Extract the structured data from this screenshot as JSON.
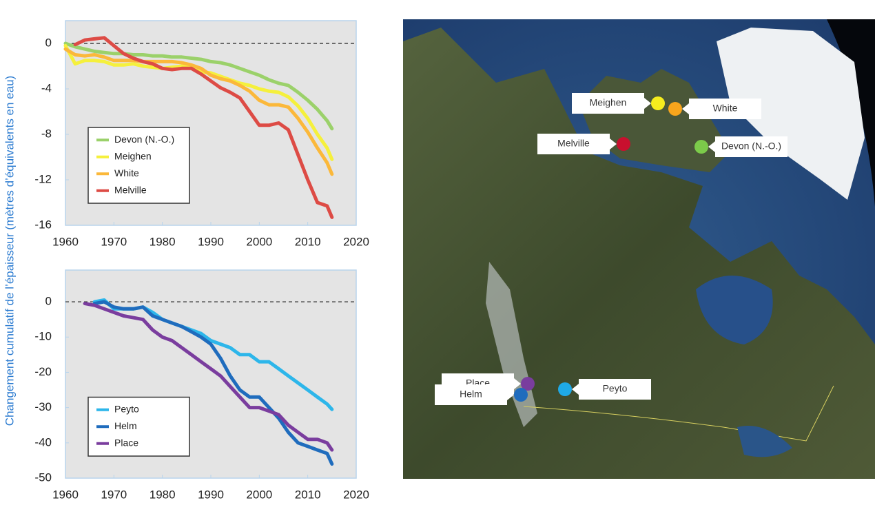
{
  "shared_ylabel": "Changement cumulatif de l’épaisseur (mètres d’équivalents en eau)",
  "chart_data": [
    {
      "type": "line",
      "x": [
        1960,
        1962,
        1964,
        1966,
        1968,
        1970,
        1972,
        1974,
        1976,
        1978,
        1980,
        1982,
        1984,
        1986,
        1988,
        1990,
        1992,
        1994,
        1996,
        1998,
        2000,
        2002,
        2004,
        2006,
        2008,
        2010,
        2012,
        2014,
        2015
      ],
      "xlim": [
        1960,
        2020
      ],
      "xticks": [
        1960,
        1970,
        1980,
        1990,
        2000,
        2010,
        2020
      ],
      "ylim": [
        -16,
        2
      ],
      "yticks": [
        0,
        -4,
        -8,
        -12,
        -16
      ],
      "reference_line": 0,
      "grid": false,
      "legend": "lower left",
      "series": [
        {
          "name": "Devon (N.-O.)",
          "color": "#9bd16a",
          "values": [
            0,
            -0.3,
            -0.5,
            -0.7,
            -0.8,
            -0.9,
            -0.9,
            -1.0,
            -1.0,
            -1.1,
            -1.1,
            -1.2,
            -1.2,
            -1.3,
            -1.4,
            -1.6,
            -1.7,
            -1.9,
            -2.2,
            -2.5,
            -2.8,
            -3.2,
            -3.5,
            -3.7,
            -4.3,
            -5.0,
            -5.8,
            -6.8,
            -7.5
          ]
        },
        {
          "name": "Meighen",
          "color": "#f5f03c",
          "values": [
            -0.2,
            -1.8,
            -1.5,
            -1.5,
            -1.6,
            -1.9,
            -1.9,
            -1.8,
            -2.0,
            -2.1,
            -2.2,
            -2.1,
            -2.0,
            -2.1,
            -2.5,
            -2.6,
            -2.9,
            -3.2,
            -3.5,
            -3.7,
            -4.0,
            -4.2,
            -4.3,
            -4.7,
            -5.5,
            -6.6,
            -8.0,
            -9.2,
            -10.2
          ]
        },
        {
          "name": "White",
          "color": "#fbb83a",
          "values": [
            -0.5,
            -1.0,
            -1.1,
            -1.0,
            -1.2,
            -1.5,
            -1.5,
            -1.5,
            -1.6,
            -1.6,
            -1.6,
            -1.6,
            -1.7,
            -1.9,
            -2.2,
            -2.8,
            -3.1,
            -3.3,
            -3.7,
            -4.2,
            -5.0,
            -5.4,
            -5.4,
            -5.6,
            -6.6,
            -7.8,
            -9.2,
            -10.5,
            -11.5
          ]
        },
        {
          "name": "Melville",
          "color": "#dd4b45",
          "values": [
            null,
            -0.1,
            0.3,
            0.4,
            0.5,
            -0.2,
            -0.9,
            -1.3,
            -1.6,
            -1.8,
            -2.2,
            -2.3,
            -2.2,
            -2.2,
            -2.7,
            -3.3,
            -3.9,
            -4.3,
            -4.8,
            -6.0,
            -7.2,
            -7.2,
            -7.0,
            -7.6,
            -9.8,
            -12.0,
            -14.0,
            -14.3,
            -15.3
          ]
        }
      ]
    },
    {
      "type": "line",
      "x": [
        1964,
        1966,
        1968,
        1970,
        1972,
        1974,
        1976,
        1978,
        1980,
        1982,
        1984,
        1986,
        1988,
        1990,
        1992,
        1994,
        1996,
        1998,
        2000,
        2002,
        2004,
        2006,
        2008,
        2010,
        2012,
        2014,
        2015
      ],
      "xlim": [
        1960,
        2020
      ],
      "xticks": [
        1960,
        1970,
        1980,
        1990,
        2000,
        2010,
        2020
      ],
      "ylim": [
        -50,
        9
      ],
      "yticks": [
        0,
        -10,
        -20,
        -30,
        -40,
        -50
      ],
      "reference_line": 0,
      "grid": false,
      "legend": "lower left",
      "series": [
        {
          "name": "Peyto",
          "color": "#2db6ea",
          "values": [
            null,
            0,
            0.5,
            -2,
            -2,
            -2,
            -1.5,
            -3,
            -5,
            -6,
            -7,
            -8,
            -9,
            -11,
            -12,
            -13,
            -15,
            -15,
            -17,
            -17,
            -19,
            -21,
            -23,
            -25,
            -27,
            -29,
            -30.5
          ]
        },
        {
          "name": "Helm",
          "color": "#1f6cbd",
          "values": [
            null,
            -0.5,
            0,
            -1.5,
            -2,
            -2,
            -1.5,
            -4,
            -5,
            -6,
            -7,
            -8.5,
            -10,
            -12,
            -16,
            -21,
            -25,
            -27,
            -27,
            -30,
            -33,
            -37,
            -40,
            -41,
            -42,
            -43,
            -46
          ]
        },
        {
          "name": "Place",
          "color": "#7a3d9e",
          "values": [
            -0.5,
            -1,
            -2,
            -3,
            -4,
            -4.5,
            -5,
            -8,
            -10,
            -11,
            -13,
            -15,
            -17,
            -19,
            -21,
            -24,
            -27,
            -30,
            -30,
            -31,
            -32,
            -35,
            -37,
            -39,
            -39,
            -40,
            -42
          ]
        }
      ]
    }
  ],
  "map": {
    "markers": [
      {
        "label": "Meighen",
        "color": "#f5ec1e"
      },
      {
        "label": "White",
        "color": "#f8a51c"
      },
      {
        "label": "Melville",
        "color": "#c8102e"
      },
      {
        "label": "Devon (N.-O.)",
        "color": "#7ccb4a"
      },
      {
        "label": "Place",
        "color": "#7a3d9e"
      },
      {
        "label": "Helm",
        "color": "#1f6cbd"
      },
      {
        "label": "Peyto",
        "color": "#1fa9e6"
      }
    ]
  }
}
